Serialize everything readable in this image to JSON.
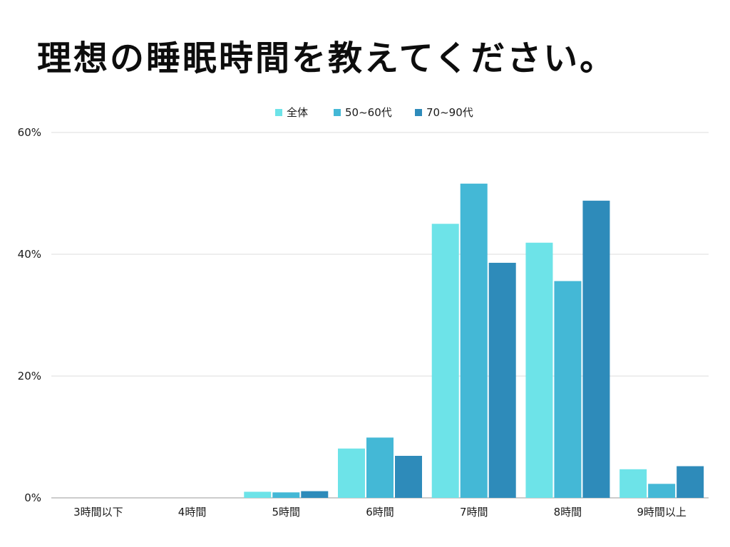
{
  "chart_data": {
    "type": "bar",
    "title": "理想の睡眠時間を教えてください。",
    "categories": [
      "3時間以下",
      "4時間",
      "5時間",
      "6時間",
      "7時間",
      "8時間",
      "9時間以上"
    ],
    "series": [
      {
        "name": "全体",
        "color": "#6de3e8",
        "values": [
          0,
          0,
          1.0,
          8.1,
          45.0,
          41.9,
          4.7
        ]
      },
      {
        "name": "50~60代",
        "color": "#44b8d6",
        "values": [
          0,
          0,
          0.9,
          9.9,
          51.6,
          35.6,
          2.3
        ]
      },
      {
        "name": "70~90代",
        "color": "#2e8bba",
        "values": [
          0,
          0,
          1.1,
          6.9,
          38.6,
          48.8,
          5.2
        ]
      }
    ],
    "yticks": [
      "0%",
      "20%",
      "40%",
      "60%"
    ],
    "ylim": [
      0,
      60
    ],
    "xlabel": "",
    "ylabel": "",
    "legend": "top-center",
    "grid": true
  }
}
